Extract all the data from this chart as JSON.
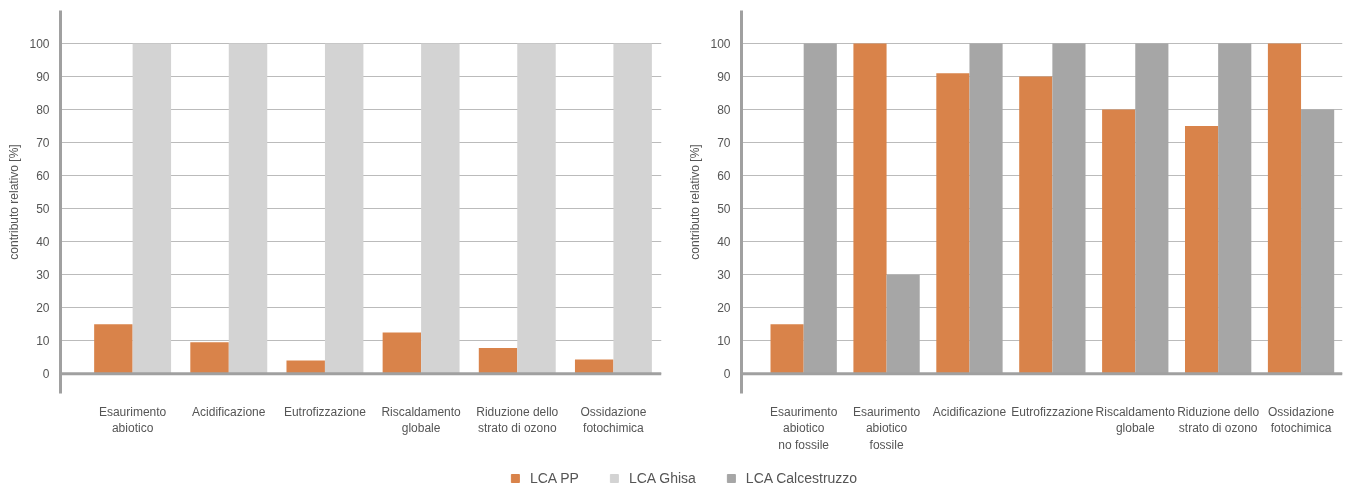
{
  "chart_data": [
    {
      "type": "bar",
      "ylabel": "contributo relativo [%]",
      "categories": [
        "Esaurimento\nabiotico",
        "Acidificazione",
        "Eutrofizzazione",
        "Riscaldamento\nglobale",
        "Riduzione dello\nstrato di ozono",
        "Ossidazione\nfotochimica"
      ],
      "series": [
        {
          "name": "LCA PP",
          "color": "#d9834a",
          "values": [
            15,
            9.5,
            4,
            12.5,
            7.8,
            4.3
          ]
        },
        {
          "name": "LCA Ghisa",
          "color": "#d3d3d3",
          "values": [
            100,
            100,
            100,
            100,
            100,
            100
          ]
        }
      ],
      "ylim": [
        -6,
        110
      ],
      "yticks": [
        0,
        10,
        20,
        30,
        40,
        50,
        60,
        70,
        80,
        90,
        100
      ],
      "grid": "y",
      "legend": "bottom"
    },
    {
      "type": "bar",
      "ylabel": "contributo relativo [%]",
      "categories": [
        "Esaurimento\nabiotico\nno fossile",
        "Esaurimento\nabiotico\nfossile",
        "Acidificazione",
        "Eutrofizzazione",
        "Riscaldamento\nglobale",
        "Riduzione dello\nstrato di ozono",
        "Ossidazione\nfotochimica"
      ],
      "series": [
        {
          "name": "LCA PP",
          "color": "#d9834a",
          "values": [
            15,
            100,
            91,
            90,
            80,
            75,
            100
          ]
        },
        {
          "name": "LCA Calcestruzzo",
          "color": "#a6a6a6",
          "values": [
            100,
            30,
            100,
            100,
            100,
            100,
            80
          ]
        }
      ],
      "ylim": [
        -6,
        110
      ],
      "yticks": [
        0,
        10,
        20,
        30,
        40,
        50,
        60,
        70,
        80,
        90,
        100
      ],
      "grid": "y",
      "legend": "bottom"
    }
  ]
}
